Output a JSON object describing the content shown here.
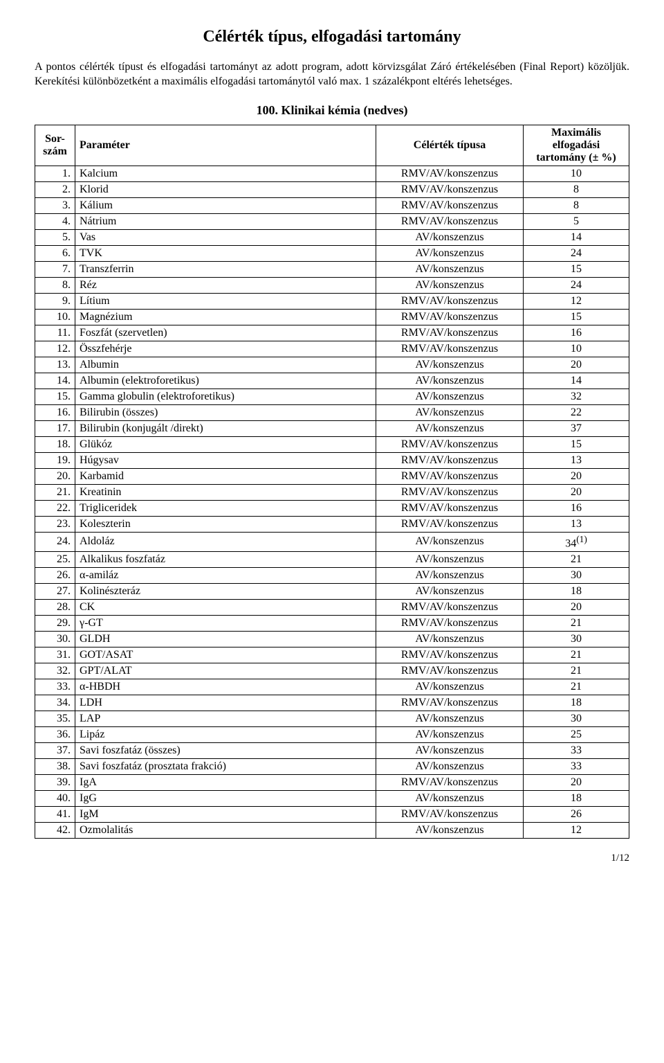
{
  "title": "Célérték típus, elfogadási tartomány",
  "intro": "A pontos célérték típust és elfogadási tartományt az adott program, adott körvizsgálat Záró értékelésében (Final Report) közöljük. Kerekítési különbözetként a maximális elfogadási tartománytól való max. 1 százalékpont eltérés lehetséges.",
  "section_heading": "100. Klinikai kémia (nedves)",
  "columns": {
    "c1": "Sor-\nszám",
    "c2": "Paraméter",
    "c3": "Célérték típusa",
    "c4": "Maximális elfogadási tartomány (± %)"
  },
  "rows": [
    {
      "n": "1.",
      "param": "Kalcium",
      "type": "RMV/AV/konszenzus",
      "tol": "10"
    },
    {
      "n": "2.",
      "param": "Klorid",
      "type": "RMV/AV/konszenzus",
      "tol": "8"
    },
    {
      "n": "3.",
      "param": "Kálium",
      "type": "RMV/AV/konszenzus",
      "tol": "8"
    },
    {
      "n": "4.",
      "param": "Nátrium",
      "type": "RMV/AV/konszenzus",
      "tol": "5"
    },
    {
      "n": "5.",
      "param": "Vas",
      "type": "AV/konszenzus",
      "tol": "14"
    },
    {
      "n": "6.",
      "param": "TVK",
      "type": "AV/konszenzus",
      "tol": "24"
    },
    {
      "n": "7.",
      "param": "Transzferrin",
      "type": "AV/konszenzus",
      "tol": "15"
    },
    {
      "n": "8.",
      "param": "Réz",
      "type": "AV/konszenzus",
      "tol": "24"
    },
    {
      "n": "9.",
      "param": "Lítium",
      "type": "RMV/AV/konszenzus",
      "tol": "12"
    },
    {
      "n": "10.",
      "param": "Magnézium",
      "type": "RMV/AV/konszenzus",
      "tol": "15"
    },
    {
      "n": "11.",
      "param": "Foszfát (szervetlen)",
      "type": "RMV/AV/konszenzus",
      "tol": "16"
    },
    {
      "n": "12.",
      "param": "Összfehérje",
      "type": "RMV/AV/konszenzus",
      "tol": "10"
    },
    {
      "n": "13.",
      "param": "Albumin",
      "type": "AV/konszenzus",
      "tol": "20"
    },
    {
      "n": "14.",
      "param": "Albumin (elektroforetikus)",
      "type": "AV/konszenzus",
      "tol": "14"
    },
    {
      "n": "15.",
      "param": "Gamma globulin (elektroforetikus)",
      "type": "AV/konszenzus",
      "tol": "32"
    },
    {
      "n": "16.",
      "param": "Bilirubin (összes)",
      "type": "AV/konszenzus",
      "tol": "22"
    },
    {
      "n": "17.",
      "param": "Bilirubin (konjugált /direkt)",
      "type": "AV/konszenzus",
      "tol": "37"
    },
    {
      "n": "18.",
      "param": "Glükóz",
      "type": "RMV/AV/konszenzus",
      "tol": "15"
    },
    {
      "n": "19.",
      "param": "Húgysav",
      "type": "RMV/AV/konszenzus",
      "tol": "13"
    },
    {
      "n": "20.",
      "param": "Karbamid",
      "type": "RMV/AV/konszenzus",
      "tol": "20"
    },
    {
      "n": "21.",
      "param": "Kreatinin",
      "type": "RMV/AV/konszenzus",
      "tol": "20"
    },
    {
      "n": "22.",
      "param": "Trigliceridek",
      "type": "RMV/AV/konszenzus",
      "tol": "16"
    },
    {
      "n": "23.",
      "param": "Koleszterin",
      "type": "RMV/AV/konszenzus",
      "tol": "13"
    },
    {
      "n": "24.",
      "param": "Aldoláz",
      "type": "AV/konszenzus",
      "tol": "34(1)",
      "sup": true
    },
    {
      "n": "25.",
      "param": "Alkalikus foszfatáz",
      "type": "AV/konszenzus",
      "tol": "21"
    },
    {
      "n": "26.",
      "param": "α-amiláz",
      "type": "AV/konszenzus",
      "tol": "30"
    },
    {
      "n": "27.",
      "param": "Kolinészteráz",
      "type": "AV/konszenzus",
      "tol": "18"
    },
    {
      "n": "28.",
      "param": "CK",
      "type": "RMV/AV/konszenzus",
      "tol": "20"
    },
    {
      "n": "29.",
      "param": "γ-GT",
      "type": "RMV/AV/konszenzus",
      "tol": "21"
    },
    {
      "n": "30.",
      "param": "GLDH",
      "type": "AV/konszenzus",
      "tol": "30"
    },
    {
      "n": "31.",
      "param": "GOT/ASAT",
      "type": "RMV/AV/konszenzus",
      "tol": "21"
    },
    {
      "n": "32.",
      "param": "GPT/ALAT",
      "type": "RMV/AV/konszenzus",
      "tol": "21"
    },
    {
      "n": "33.",
      "param": "α-HBDH",
      "type": "AV/konszenzus",
      "tol": "21"
    },
    {
      "n": "34.",
      "param": "LDH",
      "type": "RMV/AV/konszenzus",
      "tol": "18"
    },
    {
      "n": "35.",
      "param": "LAP",
      "type": "AV/konszenzus",
      "tol": "30"
    },
    {
      "n": "36.",
      "param": "Lipáz",
      "type": "AV/konszenzus",
      "tol": "25"
    },
    {
      "n": "37.",
      "param": "Savi foszfatáz (összes)",
      "type": "AV/konszenzus",
      "tol": "33"
    },
    {
      "n": "38.",
      "param": "Savi foszfatáz (prosztata frakció)",
      "type": "AV/konszenzus",
      "tol": "33"
    },
    {
      "n": "39.",
      "param": "IgA",
      "type": "RMV/AV/konszenzus",
      "tol": "20"
    },
    {
      "n": "40.",
      "param": "IgG",
      "type": "AV/konszenzus",
      "tol": "18"
    },
    {
      "n": "41.",
      "param": "IgM",
      "type": "RMV/AV/konszenzus",
      "tol": "26"
    },
    {
      "n": "42.",
      "param": "Ozmolalitás",
      "type": "AV/konszenzus",
      "tol": "12"
    }
  ],
  "page_footer": "1/12"
}
